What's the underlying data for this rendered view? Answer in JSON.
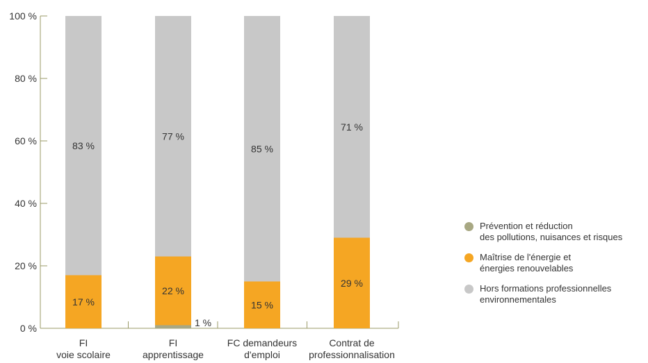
{
  "colors": {
    "prevention": "#a8a883",
    "energie": "#f5a623",
    "hors": "#c8c8c8",
    "axis": "#999966",
    "text": "#333333"
  },
  "chart_data": {
    "type": "bar",
    "stacked": true,
    "categories": [
      [
        "FI",
        "voie scolaire"
      ],
      [
        "FI",
        "apprentissage"
      ],
      [
        "FC demandeurs",
        "d'emploi"
      ],
      [
        "Contrat de",
        "professionnalisation"
      ]
    ],
    "series": [
      {
        "name": "Prévention et réduction\ndes pollutions, nuisances et risques",
        "key": "prevention",
        "values": [
          0,
          1,
          0,
          0
        ],
        "labels": [
          "",
          "1 %",
          "",
          ""
        ]
      },
      {
        "name": "Maîtrise de l'énergie et\nénergies renouvelables",
        "key": "energie",
        "values": [
          17,
          22,
          15,
          29
        ],
        "labels": [
          "17 %",
          "22 %",
          "15 %",
          "29 %"
        ]
      },
      {
        "name": "Hors formations professionnelles\nenvironnementales",
        "key": "hors",
        "values": [
          83,
          77,
          85,
          71
        ],
        "labels": [
          "83 %",
          "77 %",
          "85 %",
          "71 %"
        ]
      }
    ],
    "yticks": [
      "0 %",
      "20 %",
      "40 %",
      "60 %",
      "80 %",
      "100 %"
    ],
    "ylim": [
      0,
      100
    ],
    "legend": "right"
  }
}
